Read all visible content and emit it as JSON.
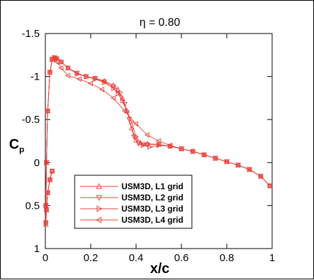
{
  "chart_data": {
    "type": "line",
    "title": "η = 0.80",
    "xlabel": "x/c",
    "ylabel_main": "C",
    "ylabel_sub": "p",
    "xlim": [
      0,
      1
    ],
    "ylim": [
      1,
      -1.5
    ],
    "y_inverted": true,
    "x_ticks": [
      {
        "v": 0,
        "label": "0"
      },
      {
        "v": 0.2,
        "label": "0.2"
      },
      {
        "v": 0.4,
        "label": "0.4"
      },
      {
        "v": 0.6,
        "label": "0.6"
      },
      {
        "v": 0.8,
        "label": "0.8"
      },
      {
        "v": 1,
        "label": "1"
      }
    ],
    "y_ticks": [
      {
        "v": -1.5,
        "label": "-1.5"
      },
      {
        "v": -1,
        "label": "-1"
      },
      {
        "v": -0.5,
        "label": "-0.5"
      },
      {
        "v": 0,
        "label": "0"
      },
      {
        "v": 0.5,
        "label": "0.5"
      },
      {
        "v": 1,
        "label": "1"
      }
    ],
    "grid": false,
    "legend_position": "bottom-left",
    "line_color": "#e8403a",
    "series": [
      {
        "name": "USM3D, L1 grid",
        "marker": "triangle-up",
        "x": [
          0.99,
          0.95,
          0.9,
          0.85,
          0.8,
          0.75,
          0.7,
          0.65,
          0.6,
          0.55,
          0.5,
          0.45,
          0.42,
          0.4,
          0.38,
          0.36,
          0.34,
          0.32,
          0.3,
          0.26,
          0.22,
          0.18,
          0.14,
          0.1,
          0.07,
          0.05,
          0.04,
          0.03,
          0.02,
          0.01,
          0.005,
          0.002,
          0.002,
          0.005,
          0.01,
          0.02,
          0.03
        ],
        "y": [
          0.27,
          0.16,
          0.08,
          0.03,
          -0.01,
          -0.05,
          -0.09,
          -0.13,
          -0.16,
          -0.19,
          -0.21,
          -0.22,
          -0.23,
          -0.26,
          -0.4,
          -0.6,
          -0.75,
          -0.85,
          -0.9,
          -0.95,
          -0.98,
          -1.0,
          -1.04,
          -1.1,
          -1.17,
          -1.21,
          -1.22,
          -1.2,
          -1.05,
          -0.6,
          0.0,
          0.5,
          0.72,
          0.55,
          0.35,
          0.2,
          0.1
        ]
      },
      {
        "name": "USM3D, L2 grid",
        "marker": "triangle-down",
        "x": [
          0.99,
          0.95,
          0.9,
          0.85,
          0.8,
          0.75,
          0.7,
          0.65,
          0.6,
          0.55,
          0.5,
          0.45,
          0.43,
          0.41,
          0.39,
          0.37,
          0.35,
          0.33,
          0.3,
          0.26,
          0.22,
          0.18,
          0.14,
          0.1,
          0.07,
          0.05,
          0.04,
          0.03,
          0.02,
          0.01,
          0.005,
          0.002,
          0.002,
          0.005,
          0.01,
          0.02,
          0.03
        ],
        "y": [
          0.27,
          0.16,
          0.08,
          0.03,
          -0.01,
          -0.05,
          -0.09,
          -0.13,
          -0.16,
          -0.19,
          -0.21,
          -0.21,
          -0.21,
          -0.22,
          -0.3,
          -0.5,
          -0.68,
          -0.8,
          -0.88,
          -0.94,
          -0.98,
          -1.0,
          -1.04,
          -1.1,
          -1.17,
          -1.21,
          -1.22,
          -1.2,
          -1.05,
          -0.6,
          0.0,
          0.5,
          0.7,
          0.55,
          0.35,
          0.2,
          0.1
        ]
      },
      {
        "name": "USM3D, L3 grid",
        "marker": "triangle-right",
        "x": [
          0.99,
          0.95,
          0.9,
          0.85,
          0.8,
          0.75,
          0.7,
          0.65,
          0.6,
          0.55,
          0.5,
          0.46,
          0.43,
          0.4,
          0.38,
          0.36,
          0.34,
          0.32,
          0.3,
          0.26,
          0.22,
          0.18,
          0.14,
          0.1,
          0.07,
          0.05,
          0.04,
          0.03,
          0.02,
          0.01,
          0.005,
          0.002,
          0.002,
          0.005,
          0.01,
          0.02,
          0.03
        ],
        "y": [
          0.27,
          0.16,
          0.08,
          0.03,
          -0.01,
          -0.05,
          -0.09,
          -0.13,
          -0.16,
          -0.19,
          -0.2,
          -0.18,
          -0.2,
          -0.3,
          -0.47,
          -0.6,
          -0.72,
          -0.8,
          -0.86,
          -0.93,
          -0.97,
          -1.0,
          -1.03,
          -1.1,
          -1.17,
          -1.21,
          -1.22,
          -1.2,
          -1.05,
          -0.6,
          0.0,
          0.5,
          0.7,
          0.55,
          0.35,
          0.2,
          0.1
        ]
      },
      {
        "name": "USM3D, L4 grid",
        "marker": "triangle-left",
        "x": [
          0.99,
          0.95,
          0.9,
          0.85,
          0.8,
          0.75,
          0.7,
          0.65,
          0.6,
          0.55,
          0.5,
          0.45,
          0.4,
          0.35,
          0.3,
          0.25,
          0.2,
          0.15,
          0.1,
          0.07,
          0.05,
          0.04,
          0.03,
          0.02,
          0.01,
          0.005,
          0.002,
          0.002,
          0.005,
          0.01,
          0.02,
          0.03
        ],
        "y": [
          0.27,
          0.16,
          0.08,
          0.03,
          -0.01,
          -0.05,
          -0.09,
          -0.13,
          -0.16,
          -0.2,
          -0.25,
          -0.32,
          -0.45,
          -0.6,
          -0.75,
          -0.85,
          -0.92,
          -0.97,
          -1.01,
          -1.1,
          -1.17,
          -1.21,
          -1.2,
          -1.05,
          -0.6,
          0.0,
          0.5,
          0.7,
          0.55,
          0.35,
          0.2,
          0.1
        ]
      }
    ]
  }
}
